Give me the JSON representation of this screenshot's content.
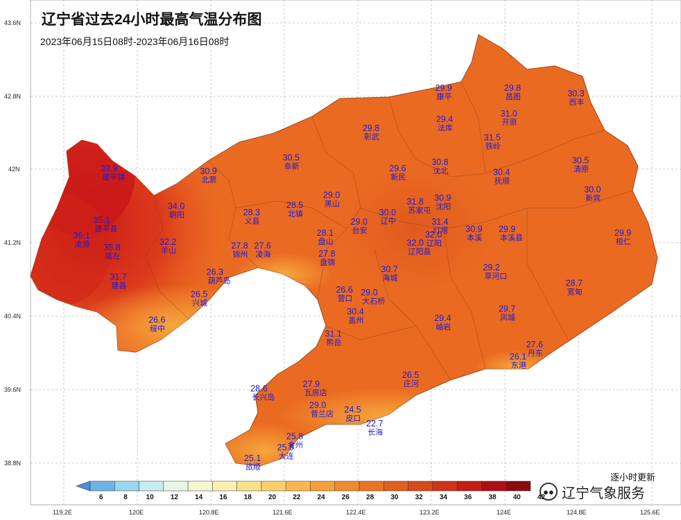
{
  "header": {
    "title": "辽宁省过去24小时最高气温分布图",
    "subtitle": "2023年06月15日08时-2023年06月16日08时"
  },
  "footer": {
    "update_note": "逐小时更新",
    "brand": "辽宁气象服务"
  },
  "axes": {
    "lat_labels": [
      "43.6N",
      "42.8N",
      "42N",
      "41.2N",
      "40.4N",
      "39.6N",
      "38.8N"
    ],
    "lon_labels": [
      "119.2E",
      "120E",
      "120.8E",
      "121.6E",
      "122.4E",
      "123.2E",
      "124E",
      "124.8E",
      "125.6E"
    ]
  },
  "legend": {
    "ticks": [
      "6",
      "8",
      "10",
      "12",
      "14",
      "16",
      "18",
      "20",
      "22",
      "24",
      "26",
      "28",
      "30",
      "32",
      "34",
      "36",
      "38",
      "40",
      "42"
    ],
    "colors": [
      "#4b8fd6",
      "#6fb2e6",
      "#9ad4ee",
      "#c6ebf2",
      "#e8f6e6",
      "#f4f8cf",
      "#fbf0b0",
      "#fbe28a",
      "#fbd069",
      "#f9b84e",
      "#f6a03c",
      "#f08a2e",
      "#ea7424",
      "#e2601e",
      "#d94a1a",
      "#cf3418",
      "#c21e16",
      "#ae0f14",
      "#8e0a10"
    ]
  },
  "stations": [
    {
      "value": "33.9",
      "name": "建平镇",
      "lon": 119.7,
      "lat": 41.98
    },
    {
      "value": "35.1",
      "name": "建平县",
      "lon": 119.62,
      "lat": 41.42
    },
    {
      "value": "36.1",
      "name": "凌源",
      "lon": 119.4,
      "lat": 41.25
    },
    {
      "value": "35.8",
      "name": "喀左",
      "lon": 119.73,
      "lat": 41.12
    },
    {
      "value": "31.7",
      "name": "建昌",
      "lon": 119.8,
      "lat": 40.8
    },
    {
      "value": "34.0",
      "name": "朝阳",
      "lon": 120.43,
      "lat": 41.57
    },
    {
      "value": "32.2",
      "name": "羊山",
      "lon": 120.34,
      "lat": 41.18
    },
    {
      "value": "30.9",
      "name": "北票",
      "lon": 120.78,
      "lat": 41.95
    },
    {
      "value": "28.3",
      "name": "义县",
      "lon": 121.25,
      "lat": 41.5
    },
    {
      "value": "27.8",
      "name": "锦州",
      "lon": 121.12,
      "lat": 41.14
    },
    {
      "value": "27.6",
      "name": "凌海",
      "lon": 121.37,
      "lat": 41.14
    },
    {
      "value": "26.3",
      "name": "葫芦岛",
      "lon": 120.85,
      "lat": 40.85
    },
    {
      "value": "26.5",
      "name": "兴城",
      "lon": 120.68,
      "lat": 40.61
    },
    {
      "value": "26.6",
      "name": "绥中",
      "lon": 120.22,
      "lat": 40.33
    },
    {
      "value": "30.5",
      "name": "阜新",
      "lon": 121.68,
      "lat": 42.1
    },
    {
      "value": "28.5",
      "name": "北镇",
      "lon": 121.72,
      "lat": 41.58
    },
    {
      "value": "29.0",
      "name": "黑山",
      "lon": 122.12,
      "lat": 41.69
    },
    {
      "value": "28.1",
      "name": "盘山",
      "lon": 122.05,
      "lat": 41.28
    },
    {
      "value": "27.8",
      "name": "盘锦",
      "lon": 122.07,
      "lat": 41.05
    },
    {
      "value": "29.8",
      "name": "彰武",
      "lon": 122.55,
      "lat": 42.42
    },
    {
      "value": "29.6",
      "name": "新民",
      "lon": 122.84,
      "lat": 41.98
    },
    {
      "value": "29.0",
      "name": "台安",
      "lon": 122.42,
      "lat": 41.4
    },
    {
      "value": "30.0",
      "name": "辽中",
      "lon": 122.73,
      "lat": 41.5
    },
    {
      "value": "26.6",
      "name": "营口",
      "lon": 122.26,
      "lat": 40.66
    },
    {
      "value": "29.0",
      "name": "大石桥",
      "lon": 122.53,
      "lat": 40.63
    },
    {
      "value": "30.4",
      "name": "盖州",
      "lon": 122.38,
      "lat": 40.42
    },
    {
      "value": "31.1",
      "name": "熊岳",
      "lon": 122.14,
      "lat": 40.18
    },
    {
      "value": "30.7",
      "name": "海城",
      "lon": 122.75,
      "lat": 40.88
    },
    {
      "value": "32.0",
      "name": "辽阳县",
      "lon": 123.03,
      "lat": 41.17
    },
    {
      "value": "32.0",
      "name": "辽阳",
      "lon": 123.23,
      "lat": 41.26
    },
    {
      "value": "31.4",
      "name": "灯塔",
      "lon": 123.3,
      "lat": 41.4
    },
    {
      "value": "31.8",
      "name": "苏家屯",
      "lon": 123.03,
      "lat": 41.62
    },
    {
      "value": "30.9",
      "name": "沈阳",
      "lon": 123.33,
      "lat": 41.66
    },
    {
      "value": "30.8",
      "name": "沈北",
      "lon": 123.3,
      "lat": 42.05
    },
    {
      "value": "29.9",
      "name": "康平",
      "lon": 123.34,
      "lat": 42.86
    },
    {
      "value": "29.4",
      "name": "法库",
      "lon": 123.35,
      "lat": 42.52
    },
    {
      "value": "29.8",
      "name": "昌图",
      "lon": 124.09,
      "lat": 42.86
    },
    {
      "value": "31.0",
      "name": "开原",
      "lon": 124.05,
      "lat": 42.58
    },
    {
      "value": "31.5",
      "name": "铁岭",
      "lon": 123.87,
      "lat": 42.32
    },
    {
      "value": "30.3",
      "name": "西丰",
      "lon": 124.78,
      "lat": 42.8
    },
    {
      "value": "30.4",
      "name": "抚顺",
      "lon": 123.97,
      "lat": 41.94
    },
    {
      "value": "30.5",
      "name": "清原",
      "lon": 124.83,
      "lat": 42.07
    },
    {
      "value": "30.0",
      "name": "新宾",
      "lon": 124.96,
      "lat": 41.75
    },
    {
      "value": "30.9",
      "name": "本溪",
      "lon": 123.67,
      "lat": 41.32
    },
    {
      "value": "29.9",
      "name": "本溪县",
      "lon": 124.03,
      "lat": 41.32
    },
    {
      "value": "29.9",
      "name": "桓仁",
      "lon": 125.29,
      "lat": 41.28
    },
    {
      "value": "29.2",
      "name": "草河口",
      "lon": 123.86,
      "lat": 40.9
    },
    {
      "value": "28.7",
      "name": "宽甸",
      "lon": 124.76,
      "lat": 40.73
    },
    {
      "value": "29.7",
      "name": "凤城",
      "lon": 124.03,
      "lat": 40.45
    },
    {
      "value": "29.4",
      "name": "岫岩",
      "lon": 123.33,
      "lat": 40.35
    },
    {
      "value": "27.6",
      "name": "丹东",
      "lon": 124.33,
      "lat": 40.06
    },
    {
      "value": "26.1",
      "name": "东港",
      "lon": 124.15,
      "lat": 39.93
    },
    {
      "value": "26.5",
      "name": "庄河",
      "lon": 122.98,
      "lat": 39.73
    },
    {
      "value": "27.9",
      "name": "瓦房店",
      "lon": 121.9,
      "lat": 39.63
    },
    {
      "value": "28.6",
      "name": "长兴岛",
      "lon": 121.33,
      "lat": 39.58
    },
    {
      "value": "29.0",
      "name": "普兰店",
      "lon": 121.97,
      "lat": 39.4
    },
    {
      "value": "24.5",
      "name": "皮口",
      "lon": 122.35,
      "lat": 39.35
    },
    {
      "value": "22.7",
      "name": "长海",
      "lon": 122.59,
      "lat": 39.2
    },
    {
      "value": "25.8",
      "name": "金州",
      "lon": 121.72,
      "lat": 39.06
    },
    {
      "value": "25.5",
      "name": "大连",
      "lon": 121.62,
      "lat": 38.94
    },
    {
      "value": "25.1",
      "name": "旅顺",
      "lon": 121.26,
      "lat": 38.82
    }
  ]
}
